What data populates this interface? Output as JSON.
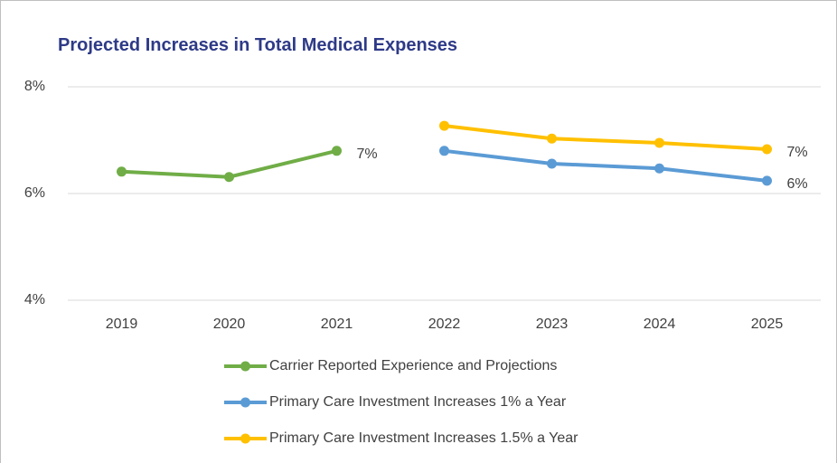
{
  "chart_data": {
    "type": "line",
    "title": "Projected Increases in Total Medical Expenses",
    "categories": [
      "2019",
      "2020",
      "2021",
      "2022",
      "2023",
      "2024",
      "2025"
    ],
    "series": [
      {
        "name": "Carrier Reported Experience and Projections",
        "color": "#70ad47",
        "values": [
          6.41,
          6.31,
          6.8,
          null,
          null,
          null,
          null
        ],
        "value_labels": [
          null,
          null,
          "7%",
          null,
          null,
          null,
          null
        ]
      },
      {
        "name": "Primary Care Investment Increases 1% a Year",
        "color": "#5b9bd5",
        "values": [
          null,
          null,
          null,
          6.8,
          6.56,
          6.47,
          6.24
        ],
        "value_labels": [
          null,
          null,
          null,
          null,
          null,
          null,
          "6%"
        ]
      },
      {
        "name": "Primary Care Investment Increases 1.5% a Year",
        "color": "#ffc000",
        "values": [
          null,
          null,
          null,
          7.27,
          7.03,
          6.95,
          6.83
        ],
        "value_labels": [
          null,
          null,
          null,
          null,
          null,
          null,
          "7%"
        ]
      }
    ],
    "ylim": [
      4,
      8
    ],
    "yticks": [
      {
        "value": 4,
        "label": "4%"
      },
      {
        "value": 6,
        "label": "6%"
      },
      {
        "value": 8,
        "label": "8%"
      }
    ],
    "grid": true,
    "legend": "bottom"
  }
}
